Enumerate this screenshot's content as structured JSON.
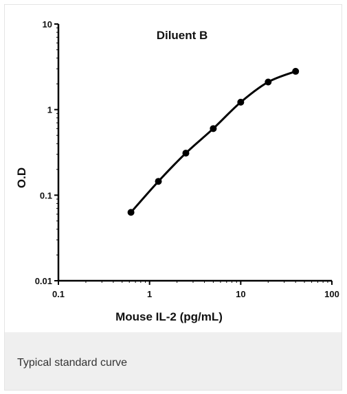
{
  "chart_data": {
    "type": "line",
    "title": "Diluent B",
    "xlabel": "Mouse IL-2 (pg/mL)",
    "ylabel": "O.D",
    "x_scale": "log",
    "y_scale": "log",
    "xlim": [
      0.1,
      100
    ],
    "ylim": [
      0.01,
      10
    ],
    "x_ticks": [
      "0.1",
      "1",
      "10",
      "100"
    ],
    "y_ticks": [
      "0.01",
      "0.1",
      "1",
      "10"
    ],
    "grid": false,
    "legend": "none",
    "line_color": "#000000",
    "series": [
      {
        "x": [
          0.625,
          1.25,
          2.5,
          5,
          10,
          20,
          40
        ],
        "y": [
          0.063,
          0.145,
          0.31,
          0.6,
          1.22,
          2.1,
          2.8
        ]
      }
    ]
  },
  "caption": {
    "text": "Typical standard curve"
  }
}
